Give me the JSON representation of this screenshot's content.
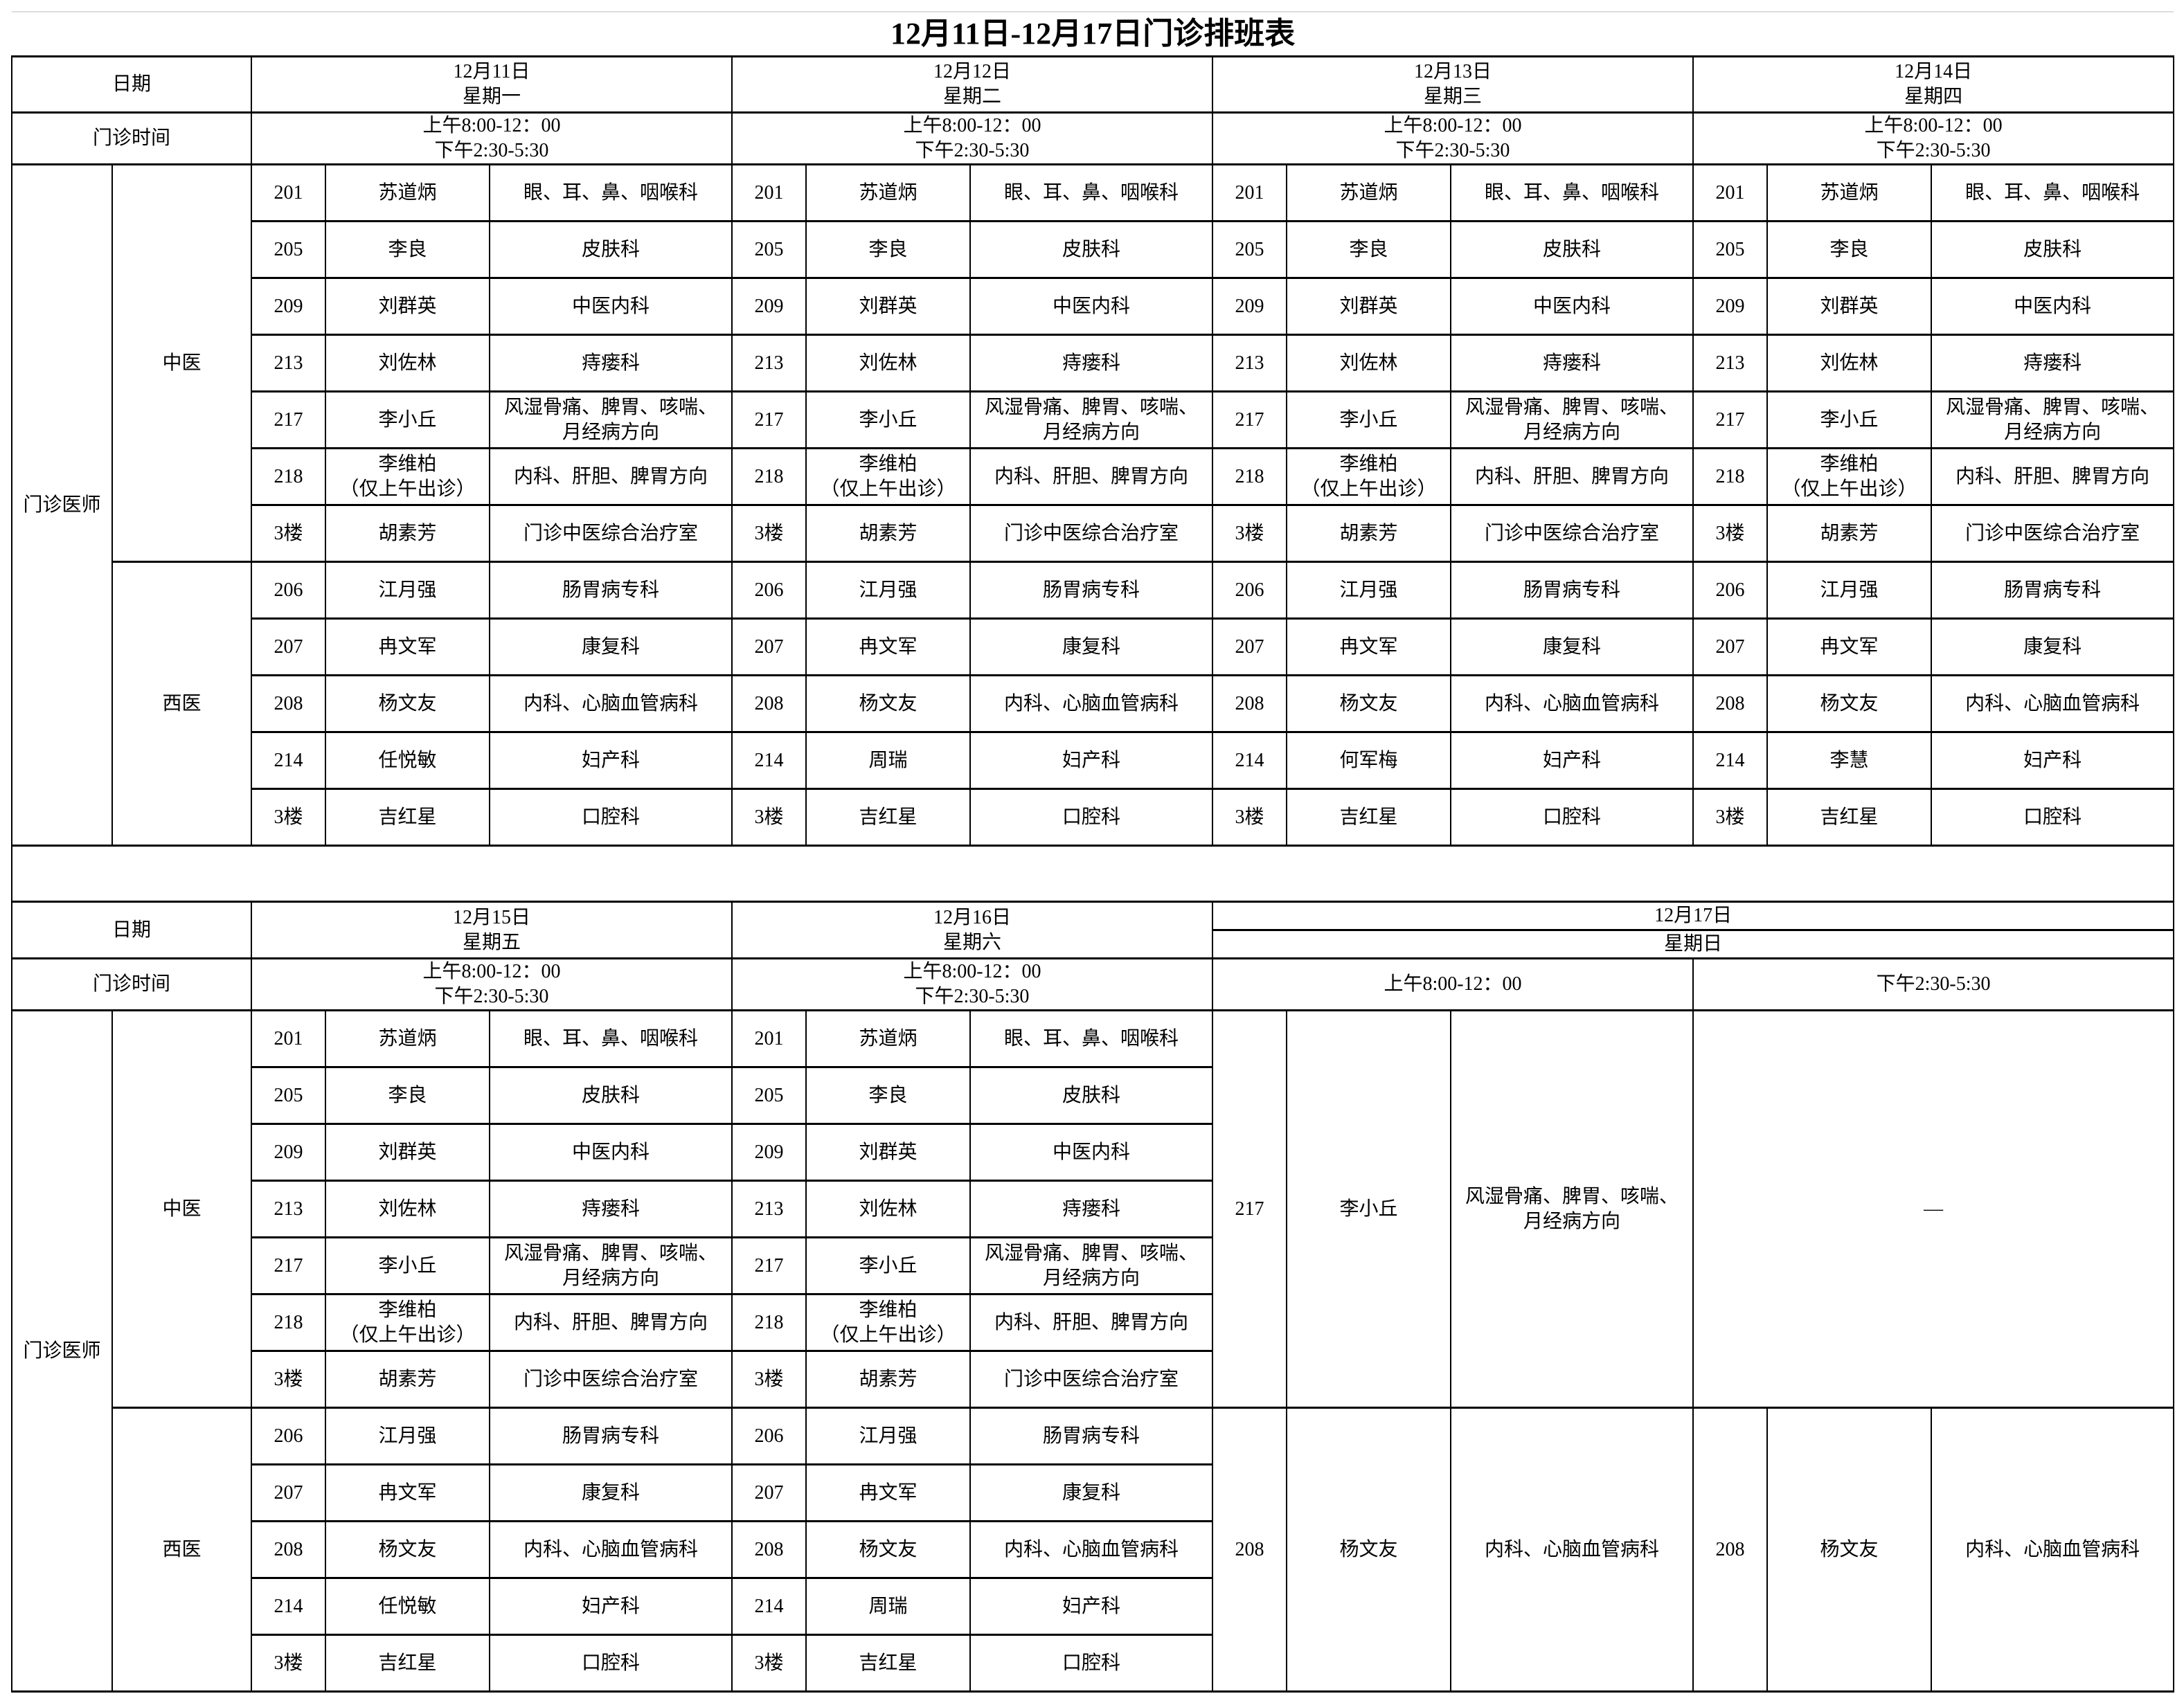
{
  "title": "12月11日-12月17日门诊排班表",
  "labels": {
    "date": "日期",
    "time": "门诊时间",
    "doctors": "门诊医师",
    "tcm": "中医",
    "wm": "西医"
  },
  "week1": [
    {
      "date": "12月11日",
      "weekday": "星期一",
      "am": "上午8:00-12：00",
      "pm": "下午2:30-5:30",
      "rows": [
        [
          "201",
          "苏道炳",
          "眼、耳、鼻、咽喉科"
        ],
        [
          "205",
          "李良",
          "皮肤科"
        ],
        [
          "209",
          "刘群英",
          "中医内科"
        ],
        [
          "213",
          "刘佐林",
          "痔瘘科"
        ],
        [
          "217",
          "李小丘",
          "风湿骨痛、脾胃、咳喘、\n月经病方向"
        ],
        [
          "218",
          "李维柏\n（仅上午出诊）",
          "内科、肝胆、脾胃方向"
        ],
        [
          "3楼",
          "胡素芳",
          "门诊中医综合治疗室"
        ],
        [
          "206",
          "江月强",
          "肠胃病专科"
        ],
        [
          "207",
          "冉文军",
          "康复科"
        ],
        [
          "208",
          "杨文友",
          "内科、心脑血管病科"
        ],
        [
          "214",
          "任悦敏",
          "妇产科"
        ],
        [
          "3楼",
          "吉红星",
          "口腔科"
        ]
      ]
    },
    {
      "date": "12月12日",
      "weekday": "星期二",
      "am": "上午8:00-12：00",
      "pm": "下午2:30-5:30",
      "rows": [
        [
          "201",
          "苏道炳",
          "眼、耳、鼻、咽喉科"
        ],
        [
          "205",
          "李良",
          "皮肤科"
        ],
        [
          "209",
          "刘群英",
          "中医内科"
        ],
        [
          "213",
          "刘佐林",
          "痔瘘科"
        ],
        [
          "217",
          "李小丘",
          "风湿骨痛、脾胃、咳喘、\n月经病方向"
        ],
        [
          "218",
          "李维柏\n（仅上午出诊）",
          "内科、肝胆、脾胃方向"
        ],
        [
          "3楼",
          "胡素芳",
          "门诊中医综合治疗室"
        ],
        [
          "206",
          "江月强",
          "肠胃病专科"
        ],
        [
          "207",
          "冉文军",
          "康复科"
        ],
        [
          "208",
          "杨文友",
          "内科、心脑血管病科"
        ],
        [
          "214",
          "周瑞",
          "妇产科"
        ],
        [
          "3楼",
          "吉红星",
          "口腔科"
        ]
      ]
    },
    {
      "date": "12月13日",
      "weekday": "星期三",
      "am": "上午8:00-12：00",
      "pm": "下午2:30-5:30",
      "rows": [
        [
          "201",
          "苏道炳",
          "眼、耳、鼻、咽喉科"
        ],
        [
          "205",
          "李良",
          "皮肤科"
        ],
        [
          "209",
          "刘群英",
          "中医内科"
        ],
        [
          "213",
          "刘佐林",
          "痔瘘科"
        ],
        [
          "217",
          "李小丘",
          "风湿骨痛、脾胃、咳喘、\n月经病方向"
        ],
        [
          "218",
          "李维柏\n（仅上午出诊）",
          "内科、肝胆、脾胃方向"
        ],
        [
          "3楼",
          "胡素芳",
          "门诊中医综合治疗室"
        ],
        [
          "206",
          "江月强",
          "肠胃病专科"
        ],
        [
          "207",
          "冉文军",
          "康复科"
        ],
        [
          "208",
          "杨文友",
          "内科、心脑血管病科"
        ],
        [
          "214",
          "何军梅",
          "妇产科"
        ],
        [
          "3楼",
          "吉红星",
          "口腔科"
        ]
      ]
    },
    {
      "date": "12月14日",
      "weekday": "星期四",
      "am": "上午8:00-12：00",
      "pm": "下午2:30-5:30",
      "rows": [
        [
          "201",
          "苏道炳",
          "眼、耳、鼻、咽喉科"
        ],
        [
          "205",
          "李良",
          "皮肤科"
        ],
        [
          "209",
          "刘群英",
          "中医内科"
        ],
        [
          "213",
          "刘佐林",
          "痔瘘科"
        ],
        [
          "217",
          "李小丘",
          "风湿骨痛、脾胃、咳喘、\n月经病方向"
        ],
        [
          "218",
          "李维柏\n（仅上午出诊）",
          "内科、肝胆、脾胃方向"
        ],
        [
          "3楼",
          "胡素芳",
          "门诊中医综合治疗室"
        ],
        [
          "206",
          "江月强",
          "肠胃病专科"
        ],
        [
          "207",
          "冉文军",
          "康复科"
        ],
        [
          "208",
          "杨文友",
          "内科、心脑血管病科"
        ],
        [
          "214",
          "李慧",
          "妇产科"
        ],
        [
          "3楼",
          "吉红星",
          "口腔科"
        ]
      ]
    }
  ],
  "week2": [
    {
      "date": "12月15日",
      "weekday": "星期五",
      "am": "上午8:00-12：00",
      "pm": "下午2:30-5:30",
      "rows": [
        [
          "201",
          "苏道炳",
          "眼、耳、鼻、咽喉科"
        ],
        [
          "205",
          "李良",
          "皮肤科"
        ],
        [
          "209",
          "刘群英",
          "中医内科"
        ],
        [
          "213",
          "刘佐林",
          "痔瘘科"
        ],
        [
          "217",
          "李小丘",
          "风湿骨痛、脾胃、咳喘、\n月经病方向"
        ],
        [
          "218",
          "李维柏\n（仅上午出诊）",
          "内科、肝胆、脾胃方向"
        ],
        [
          "3楼",
          "胡素芳",
          "门诊中医综合治疗室"
        ],
        [
          "206",
          "江月强",
          "肠胃病专科"
        ],
        [
          "207",
          "冉文军",
          "康复科"
        ],
        [
          "208",
          "杨文友",
          "内科、心脑血管病科"
        ],
        [
          "214",
          "任悦敏",
          "妇产科"
        ],
        [
          "3楼",
          "吉红星",
          "口腔科"
        ]
      ]
    },
    {
      "date": "12月16日",
      "weekday": "星期六",
      "am": "上午8:00-12：00",
      "pm": "下午2:30-5:30",
      "rows": [
        [
          "201",
          "苏道炳",
          "眼、耳、鼻、咽喉科"
        ],
        [
          "205",
          "李良",
          "皮肤科"
        ],
        [
          "209",
          "刘群英",
          "中医内科"
        ],
        [
          "213",
          "刘佐林",
          "痔瘘科"
        ],
        [
          "217",
          "李小丘",
          "风湿骨痛、脾胃、咳喘、\n月经病方向"
        ],
        [
          "218",
          "李维柏\n（仅上午出诊）",
          "内科、肝胆、脾胃方向"
        ],
        [
          "3楼",
          "胡素芳",
          "门诊中医综合治疗室"
        ],
        [
          "206",
          "江月强",
          "肠胃病专科"
        ],
        [
          "207",
          "冉文军",
          "康复科"
        ],
        [
          "208",
          "杨文友",
          "内科、心脑血管病科"
        ],
        [
          "214",
          "周瑞",
          "妇产科"
        ],
        [
          "3楼",
          "吉红星",
          "口腔科"
        ]
      ]
    }
  ],
  "sunday": {
    "date": "12月17日",
    "weekday": "星期日",
    "am": "上午8:00-12：00",
    "pm": "下午2:30-5:30",
    "am_tcm": [
      "217",
      "李小丘",
      "风湿骨痛、脾胃、咳喘、\n月经病方向"
    ],
    "pm_tcm": "—",
    "am_wm": [
      "208",
      "杨文友",
      "内科、心脑血管病科"
    ],
    "pm_wm": [
      "208",
      "杨文友",
      "内科、心脑血管病科"
    ]
  }
}
